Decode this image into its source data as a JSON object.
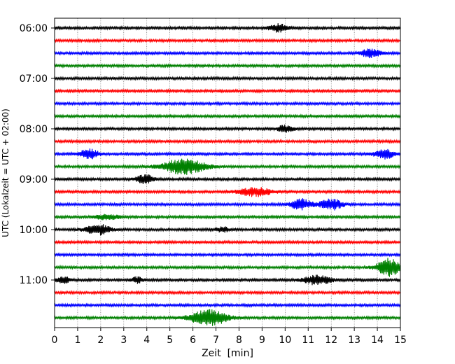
{
  "chart_data": {
    "type": "line",
    "title": "",
    "xlabel": "Zeit  [min]",
    "ylabel": "UTC (Lokalzeit = UTC + 02:00)",
    "xlim": [
      0,
      15
    ],
    "x_ticks": [
      "0",
      "1",
      "2",
      "3",
      "4",
      "5",
      "6",
      "7",
      "8",
      "9",
      "10",
      "11",
      "12",
      "13",
      "14",
      "15"
    ],
    "y_ticks": [
      "06:00",
      "07:00",
      "08:00",
      "09:00",
      "10:00",
      "11:00"
    ],
    "grid": "vertical dotted at each minute",
    "legend": "none",
    "trace_interval_minutes": 15,
    "color_cycle": [
      "#000000",
      "#ff0000",
      "#0000ff",
      "#008000"
    ],
    "traces": [
      {
        "start": "06:00",
        "color": "black",
        "events": [
          {
            "t": 9.7,
            "amp": 5.5,
            "w": 0.4
          }
        ]
      },
      {
        "start": "06:15",
        "color": "red",
        "events": []
      },
      {
        "start": "06:30",
        "color": "blue",
        "events": [
          {
            "t": 13.7,
            "amp": 5.5,
            "w": 0.45
          }
        ]
      },
      {
        "start": "06:45",
        "color": "green",
        "events": []
      },
      {
        "start": "07:00",
        "color": "black",
        "events": []
      },
      {
        "start": "07:15",
        "color": "red",
        "events": []
      },
      {
        "start": "07:30",
        "color": "blue",
        "events": []
      },
      {
        "start": "07:45",
        "color": "green",
        "events": []
      },
      {
        "start": "08:00",
        "color": "black",
        "events": [
          {
            "t": 10.0,
            "amp": 4.5,
            "w": 0.35
          }
        ]
      },
      {
        "start": "08:15",
        "color": "red",
        "events": []
      },
      {
        "start": "08:30",
        "color": "blue",
        "events": [
          {
            "t": 1.5,
            "amp": 6.5,
            "w": 0.4
          },
          {
            "t": 14.3,
            "amp": 6.5,
            "w": 0.45
          }
        ]
      },
      {
        "start": "08:45",
        "color": "green",
        "events": [
          {
            "t": 5.6,
            "amp": 11,
            "w": 0.9
          }
        ]
      },
      {
        "start": "09:00",
        "color": "black",
        "events": [
          {
            "t": 3.9,
            "amp": 6.5,
            "w": 0.35
          }
        ]
      },
      {
        "start": "09:15",
        "color": "red",
        "events": [
          {
            "t": 8.7,
            "amp": 6,
            "w": 0.7
          }
        ]
      },
      {
        "start": "09:30",
        "color": "blue",
        "events": [
          {
            "t": 10.7,
            "amp": 7.5,
            "w": 0.45
          },
          {
            "t": 12.0,
            "amp": 7.5,
            "w": 0.5
          }
        ]
      },
      {
        "start": "09:45",
        "color": "green",
        "events": [
          {
            "t": 2.3,
            "amp": 3.5,
            "w": 0.5
          }
        ]
      },
      {
        "start": "10:00",
        "color": "black",
        "events": [
          {
            "t": 1.9,
            "amp": 7,
            "w": 0.55
          },
          {
            "t": 7.3,
            "amp": 3.5,
            "w": 0.3
          }
        ]
      },
      {
        "start": "10:15",
        "color": "red",
        "events": []
      },
      {
        "start": "10:30",
        "color": "blue",
        "events": []
      },
      {
        "start": "10:45",
        "color": "green",
        "events": [
          {
            "t": 14.5,
            "amp": 12,
            "w": 0.5
          }
        ]
      },
      {
        "start": "11:00",
        "color": "black",
        "events": [
          {
            "t": 0.4,
            "amp": 4.5,
            "w": 0.3
          },
          {
            "t": 3.6,
            "amp": 4,
            "w": 0.25
          },
          {
            "t": 11.4,
            "amp": 6.5,
            "w": 0.6
          }
        ]
      },
      {
        "start": "11:15",
        "color": "red",
        "events": []
      },
      {
        "start": "11:30",
        "color": "blue",
        "events": []
      },
      {
        "start": "11:45",
        "color": "green",
        "events": [
          {
            "t": 6.7,
            "amp": 11,
            "w": 0.8
          }
        ]
      }
    ]
  }
}
